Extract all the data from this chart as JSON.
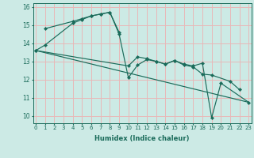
{
  "background_color": "#cceae5",
  "grid_color": "#e8b8b8",
  "line_color": "#1a6b5a",
  "series": [
    {
      "x": [
        0,
        1,
        4,
        5,
        6,
        7,
        8,
        9
      ],
      "y": [
        13.6,
        13.9,
        15.1,
        15.3,
        15.5,
        15.6,
        15.7,
        14.6
      ]
    },
    {
      "x": [
        1,
        4,
        5,
        6,
        7,
        8,
        9,
        10,
        11,
        12,
        13,
        14,
        15,
        16,
        17,
        18,
        19,
        21,
        22
      ],
      "y": [
        14.8,
        15.2,
        15.35,
        15.5,
        15.6,
        15.7,
        14.5,
        12.1,
        12.8,
        13.1,
        13.0,
        12.85,
        13.05,
        12.8,
        12.7,
        12.3,
        12.25,
        11.9,
        11.45
      ]
    },
    {
      "x": [
        0,
        10,
        11,
        12,
        13,
        14,
        15,
        16,
        17,
        18,
        19,
        20,
        23
      ],
      "y": [
        13.6,
        12.75,
        13.25,
        13.15,
        13.0,
        12.85,
        13.05,
        12.85,
        12.75,
        12.9,
        9.9,
        11.8,
        10.75
      ]
    }
  ],
  "xlim": [
    -0.3,
    23.3
  ],
  "ylim": [
    9.6,
    16.2
  ],
  "yticks": [
    10,
    11,
    12,
    13,
    14,
    15,
    16
  ],
  "xticks": [
    0,
    1,
    2,
    3,
    4,
    5,
    6,
    7,
    8,
    9,
    10,
    11,
    12,
    13,
    14,
    15,
    16,
    17,
    18,
    19,
    20,
    21,
    22,
    23
  ],
  "xlabel": "Humidex (Indice chaleur)"
}
